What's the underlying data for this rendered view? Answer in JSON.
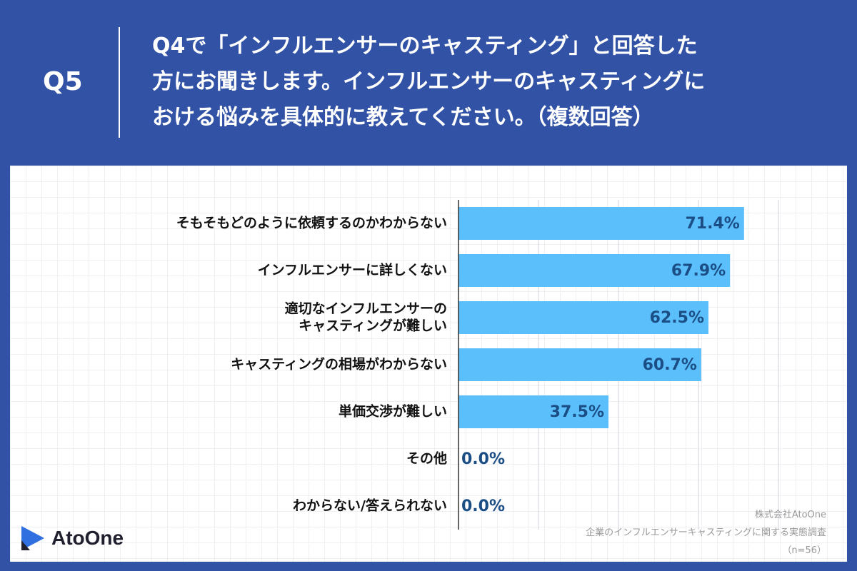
{
  "header": {
    "q_label": "Q5",
    "question_lines": [
      "Q4で「インフルエンサーのキャスティング」と回答した",
      "方にお聞きします。インフルエンサーのキャスティングに",
      "おける悩みを具体的に教えてください。（複数回答）"
    ]
  },
  "colors": {
    "header_bg": "#3252a6",
    "bar": "#5bbffb",
    "value_text": "#1c4e86",
    "label_text": "#111111"
  },
  "chart_data": {
    "type": "bar",
    "orientation": "horizontal",
    "categories": [
      "そもそもどのように依頼するのかわからない",
      "インフルエンサーに詳しくない",
      "適切なインフルエンサーの\nキャスティングが難しい",
      "キャスティングの相場がわからない",
      "単価交渉が難しい",
      "その他",
      "わからない/答えられない"
    ],
    "values": [
      71.4,
      67.9,
      62.5,
      60.7,
      37.5,
      0.0,
      0.0
    ],
    "value_labels": [
      "71.4%",
      "67.9%",
      "62.5%",
      "60.7%",
      "37.5%",
      "0.0%",
      "0.0%"
    ],
    "xlim": [
      0,
      100
    ],
    "grid": true
  },
  "footer": {
    "company": "株式会社AtoOne",
    "survey": "企業のインフルエンサーキャスティングに関する実態調査",
    "n_label": "（n=56）"
  },
  "logo": {
    "text": "AtoOne",
    "icon": "atoone-logo-icon"
  }
}
